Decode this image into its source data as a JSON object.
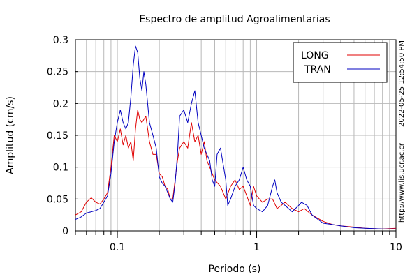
{
  "chart_data": {
    "type": "line",
    "title": "Espectro de amplitud Agroalimentarias",
    "xlabel": "Periodo (s)",
    "ylabel": "Amplitud (cm/s)",
    "x_scale": "log",
    "xlim": [
      0.05,
      10
    ],
    "ylim": [
      0,
      0.3
    ],
    "x_ticks": [
      {
        "value": 0.1,
        "label": "0.1"
      },
      {
        "value": 1,
        "label": "1"
      },
      {
        "value": 10,
        "label": "10"
      }
    ],
    "y_ticks": [
      {
        "value": 0,
        "label": "0"
      },
      {
        "value": 0.05,
        "label": "0.05"
      },
      {
        "value": 0.1,
        "label": "0.1"
      },
      {
        "value": 0.15,
        "label": "0.15"
      },
      {
        "value": 0.2,
        "label": "0.2"
      },
      {
        "value": 0.25,
        "label": "0.25"
      },
      {
        "value": 0.3,
        "label": "0.3"
      }
    ],
    "grid": true,
    "legend_position": "top-right",
    "series": [
      {
        "name": "LONG",
        "color": "#e00000",
        "points": [
          [
            0.05,
            0.025
          ],
          [
            0.055,
            0.03
          ],
          [
            0.06,
            0.045
          ],
          [
            0.065,
            0.052
          ],
          [
            0.07,
            0.045
          ],
          [
            0.075,
            0.042
          ],
          [
            0.08,
            0.05
          ],
          [
            0.085,
            0.06
          ],
          [
            0.09,
            0.1
          ],
          [
            0.095,
            0.15
          ],
          [
            0.1,
            0.14
          ],
          [
            0.105,
            0.16
          ],
          [
            0.11,
            0.135
          ],
          [
            0.115,
            0.15
          ],
          [
            0.12,
            0.13
          ],
          [
            0.125,
            0.14
          ],
          [
            0.13,
            0.11
          ],
          [
            0.135,
            0.16
          ],
          [
            0.14,
            0.19
          ],
          [
            0.145,
            0.175
          ],
          [
            0.15,
            0.17
          ],
          [
            0.16,
            0.18
          ],
          [
            0.17,
            0.14
          ],
          [
            0.18,
            0.12
          ],
          [
            0.19,
            0.12
          ],
          [
            0.2,
            0.09
          ],
          [
            0.21,
            0.085
          ],
          [
            0.22,
            0.07
          ],
          [
            0.23,
            0.065
          ],
          [
            0.24,
            0.05
          ],
          [
            0.25,
            0.05
          ],
          [
            0.26,
            0.08
          ],
          [
            0.27,
            0.11
          ],
          [
            0.28,
            0.13
          ],
          [
            0.3,
            0.14
          ],
          [
            0.32,
            0.13
          ],
          [
            0.34,
            0.17
          ],
          [
            0.36,
            0.14
          ],
          [
            0.38,
            0.15
          ],
          [
            0.4,
            0.12
          ],
          [
            0.42,
            0.14
          ],
          [
            0.44,
            0.11
          ],
          [
            0.46,
            0.1
          ],
          [
            0.48,
            0.09
          ],
          [
            0.5,
            0.08
          ],
          [
            0.55,
            0.07
          ],
          [
            0.6,
            0.05
          ],
          [
            0.65,
            0.07
          ],
          [
            0.7,
            0.08
          ],
          [
            0.75,
            0.065
          ],
          [
            0.8,
            0.07
          ],
          [
            0.85,
            0.055
          ],
          [
            0.9,
            0.04
          ],
          [
            0.95,
            0.07
          ],
          [
            1.0,
            0.055
          ],
          [
            1.1,
            0.045
          ],
          [
            1.2,
            0.05
          ],
          [
            1.3,
            0.05
          ],
          [
            1.4,
            0.035
          ],
          [
            1.5,
            0.04
          ],
          [
            1.6,
            0.045
          ],
          [
            1.8,
            0.035
          ],
          [
            2.0,
            0.03
          ],
          [
            2.2,
            0.035
          ],
          [
            2.5,
            0.025
          ],
          [
            3.0,
            0.015
          ],
          [
            3.5,
            0.01
          ],
          [
            4.0,
            0.008
          ],
          [
            5.0,
            0.006
          ],
          [
            6.0,
            0.004
          ],
          [
            8.0,
            0.003
          ],
          [
            10.0,
            0.004
          ]
        ]
      },
      {
        "name": "TRAN",
        "color": "#0000c0",
        "points": [
          [
            0.05,
            0.018
          ],
          [
            0.055,
            0.022
          ],
          [
            0.06,
            0.028
          ],
          [
            0.065,
            0.03
          ],
          [
            0.07,
            0.032
          ],
          [
            0.075,
            0.035
          ],
          [
            0.08,
            0.045
          ],
          [
            0.085,
            0.055
          ],
          [
            0.09,
            0.09
          ],
          [
            0.095,
            0.14
          ],
          [
            0.1,
            0.17
          ],
          [
            0.105,
            0.19
          ],
          [
            0.11,
            0.17
          ],
          [
            0.115,
            0.16
          ],
          [
            0.12,
            0.17
          ],
          [
            0.125,
            0.21
          ],
          [
            0.13,
            0.26
          ],
          [
            0.135,
            0.29
          ],
          [
            0.14,
            0.28
          ],
          [
            0.145,
            0.24
          ],
          [
            0.15,
            0.22
          ],
          [
            0.155,
            0.25
          ],
          [
            0.16,
            0.23
          ],
          [
            0.17,
            0.17
          ],
          [
            0.18,
            0.15
          ],
          [
            0.19,
            0.13
          ],
          [
            0.2,
            0.085
          ],
          [
            0.21,
            0.075
          ],
          [
            0.22,
            0.07
          ],
          [
            0.23,
            0.06
          ],
          [
            0.24,
            0.05
          ],
          [
            0.25,
            0.045
          ],
          [
            0.26,
            0.075
          ],
          [
            0.27,
            0.12
          ],
          [
            0.28,
            0.18
          ],
          [
            0.3,
            0.19
          ],
          [
            0.32,
            0.17
          ],
          [
            0.34,
            0.2
          ],
          [
            0.36,
            0.22
          ],
          [
            0.38,
            0.17
          ],
          [
            0.4,
            0.15
          ],
          [
            0.42,
            0.13
          ],
          [
            0.44,
            0.12
          ],
          [
            0.46,
            0.11
          ],
          [
            0.48,
            0.08
          ],
          [
            0.5,
            0.07
          ],
          [
            0.52,
            0.12
          ],
          [
            0.55,
            0.13
          ],
          [
            0.6,
            0.08
          ],
          [
            0.62,
            0.04
          ],
          [
            0.65,
            0.05
          ],
          [
            0.7,
            0.07
          ],
          [
            0.75,
            0.08
          ],
          [
            0.8,
            0.1
          ],
          [
            0.85,
            0.08
          ],
          [
            0.9,
            0.07
          ],
          [
            0.95,
            0.04
          ],
          [
            1.0,
            0.035
          ],
          [
            1.1,
            0.03
          ],
          [
            1.2,
            0.04
          ],
          [
            1.3,
            0.07
          ],
          [
            1.35,
            0.08
          ],
          [
            1.4,
            0.06
          ],
          [
            1.5,
            0.045
          ],
          [
            1.6,
            0.04
          ],
          [
            1.8,
            0.03
          ],
          [
            2.0,
            0.04
          ],
          [
            2.1,
            0.045
          ],
          [
            2.3,
            0.04
          ],
          [
            2.5,
            0.025
          ],
          [
            3.0,
            0.012
          ],
          [
            3.5,
            0.01
          ],
          [
            4.0,
            0.008
          ],
          [
            5.0,
            0.005
          ],
          [
            6.0,
            0.004
          ],
          [
            8.0,
            0.003
          ],
          [
            10.0,
            0.003
          ]
        ]
      }
    ]
  },
  "side_text": {
    "timestamp": "2022-05-25 12:54:50 PM",
    "url": "http://www.lis.ucr.ac.cr"
  }
}
